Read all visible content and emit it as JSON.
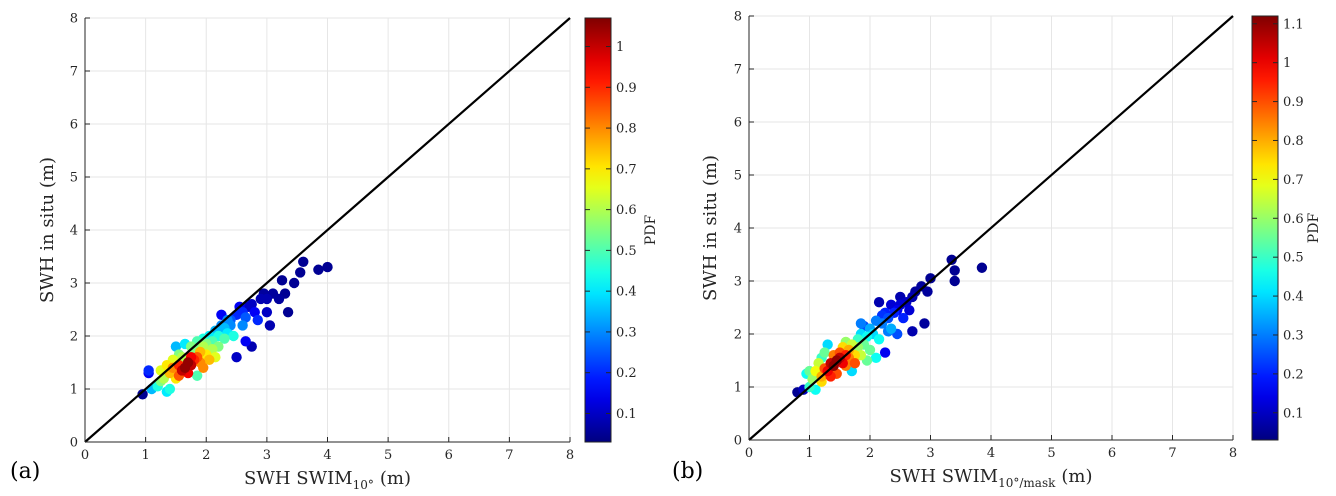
{
  "colors": {
    "reference_line": "#000000",
    "grid": "#e6e6e6",
    "axis": "#262626",
    "colormap": "jet"
  },
  "chart_data": [
    {
      "type": "scatter",
      "panel_label": "(a)",
      "xlabel_main": "SWH SWIM",
      "xlabel_sub": "10°",
      "xlabel_unit": "(m)",
      "ylabel": "SWH in situ (m)",
      "colorbar_label": "PDF",
      "xlim": [
        0,
        8
      ],
      "ylim": [
        0,
        8
      ],
      "xticks": [
        "0",
        "1",
        "2",
        "3",
        "4",
        "5",
        "6",
        "7",
        "8"
      ],
      "yticks": [
        "0",
        "1",
        "2",
        "3",
        "4",
        "5",
        "6",
        "7",
        "8"
      ],
      "colorbar_range": [
        0.03,
        1.07
      ],
      "colorbar_ticks": [
        "0.1",
        "0.2",
        "0.3",
        "0.4",
        "0.5",
        "0.6",
        "0.7",
        "0.8",
        "0.9",
        "1"
      ],
      "grid": true,
      "reference_line": "y = x",
      "points": [
        [
          0.95,
          0.9,
          0.05
        ],
        [
          1.05,
          1.3,
          0.15
        ],
        [
          1.05,
          1.35,
          0.2
        ],
        [
          1.1,
          1.0,
          0.35
        ],
        [
          1.2,
          1.05,
          0.45
        ],
        [
          1.25,
          1.15,
          0.55
        ],
        [
          1.3,
          1.2,
          0.6
        ],
        [
          1.35,
          0.95,
          0.4
        ],
        [
          1.4,
          1.0,
          0.45
        ],
        [
          1.4,
          1.3,
          0.75
        ],
        [
          1.45,
          1.4,
          0.8
        ],
        [
          1.5,
          1.2,
          0.7
        ],
        [
          1.5,
          1.8,
          0.35
        ],
        [
          1.55,
          1.45,
          0.9
        ],
        [
          1.55,
          1.25,
          0.85
        ],
        [
          1.6,
          1.35,
          1.0
        ],
        [
          1.6,
          1.6,
          0.6
        ],
        [
          1.65,
          1.4,
          1.05
        ],
        [
          1.65,
          1.85,
          0.4
        ],
        [
          1.7,
          1.5,
          1.05
        ],
        [
          1.7,
          1.3,
          0.95
        ],
        [
          1.75,
          1.45,
          1.0
        ],
        [
          1.75,
          1.6,
          0.95
        ],
        [
          1.8,
          1.55,
          0.9
        ],
        [
          1.8,
          1.75,
          0.55
        ],
        [
          1.85,
          1.6,
          0.85
        ],
        [
          1.85,
          1.25,
          0.5
        ],
        [
          1.9,
          1.7,
          0.75
        ],
        [
          1.9,
          1.5,
          0.8
        ],
        [
          1.95,
          1.8,
          0.6
        ],
        [
          1.95,
          1.95,
          0.45
        ],
        [
          2.0,
          1.65,
          0.7
        ],
        [
          2.0,
          1.85,
          0.55
        ],
        [
          2.05,
          2.0,
          0.4
        ],
        [
          2.1,
          1.75,
          0.6
        ],
        [
          2.1,
          1.9,
          0.5
        ],
        [
          2.15,
          2.1,
          0.35
        ],
        [
          2.2,
          1.8,
          0.55
        ],
        [
          2.2,
          2.0,
          0.45
        ],
        [
          2.25,
          2.2,
          0.3
        ],
        [
          2.25,
          2.4,
          0.15
        ],
        [
          2.3,
          1.95,
          0.5
        ],
        [
          2.3,
          2.15,
          0.35
        ],
        [
          2.35,
          2.05,
          0.4
        ],
        [
          2.4,
          2.3,
          0.25
        ],
        [
          2.4,
          2.2,
          0.3
        ],
        [
          2.45,
          2.0,
          0.45
        ],
        [
          2.5,
          1.6,
          0.1
        ],
        [
          2.5,
          2.4,
          0.2
        ],
        [
          2.55,
          2.55,
          0.15
        ],
        [
          2.6,
          2.2,
          0.3
        ],
        [
          2.6,
          2.45,
          0.2
        ],
        [
          2.65,
          1.9,
          0.15
        ],
        [
          2.65,
          2.35,
          0.25
        ],
        [
          2.7,
          2.55,
          0.1
        ],
        [
          2.75,
          1.8,
          0.08
        ],
        [
          2.75,
          2.6,
          0.1
        ],
        [
          2.8,
          2.45,
          0.15
        ],
        [
          2.85,
          2.3,
          0.2
        ],
        [
          2.9,
          2.7,
          0.08
        ],
        [
          2.95,
          2.8,
          0.06
        ],
        [
          3.0,
          2.7,
          0.08
        ],
        [
          3.0,
          2.45,
          0.1
        ],
        [
          3.05,
          2.2,
          0.08
        ],
        [
          3.1,
          2.8,
          0.06
        ],
        [
          3.2,
          2.7,
          0.06
        ],
        [
          3.25,
          3.05,
          0.05
        ],
        [
          3.3,
          2.8,
          0.05
        ],
        [
          3.35,
          2.45,
          0.05
        ],
        [
          3.45,
          3.0,
          0.05
        ],
        [
          3.55,
          3.2,
          0.05
        ],
        [
          3.6,
          3.4,
          0.05
        ],
        [
          3.85,
          3.25,
          0.05
        ],
        [
          4.0,
          3.3,
          0.05
        ],
        [
          1.55,
          1.65,
          0.55
        ],
        [
          1.45,
          1.55,
          0.65
        ],
        [
          1.35,
          1.45,
          0.7
        ],
        [
          1.25,
          1.35,
          0.65
        ],
        [
          2.05,
          1.55,
          0.75
        ],
        [
          1.95,
          1.4,
          0.8
        ],
        [
          2.15,
          1.6,
          0.65
        ],
        [
          1.85,
          1.9,
          0.5
        ],
        [
          1.75,
          1.8,
          0.55
        ],
        [
          2.35,
          2.3,
          0.3
        ]
      ]
    },
    {
      "type": "scatter",
      "panel_label": "(b)",
      "xlabel_main": "SWH SWIM",
      "xlabel_sub": "10°/mask",
      "xlabel_unit": "(m)",
      "ylabel": "SWH in situ (m)",
      "colorbar_label": "PDF",
      "xlim": [
        0,
        8
      ],
      "ylim": [
        0,
        8
      ],
      "xticks": [
        "0",
        "1",
        "2",
        "3",
        "4",
        "5",
        "6",
        "7",
        "8"
      ],
      "yticks": [
        "0",
        "1",
        "2",
        "3",
        "4",
        "5",
        "6",
        "7",
        "8"
      ],
      "colorbar_range": [
        0.03,
        1.12
      ],
      "colorbar_ticks": [
        "0.1",
        "0.2",
        "0.3",
        "0.4",
        "0.5",
        "0.6",
        "0.7",
        "0.8",
        "0.9",
        "1",
        "1.1"
      ],
      "grid": true,
      "reference_line": "y = x",
      "points": [
        [
          0.8,
          0.9,
          0.05
        ],
        [
          0.9,
          0.95,
          0.1
        ],
        [
          0.95,
          1.25,
          0.45
        ],
        [
          1.0,
          1.0,
          0.5
        ],
        [
          1.05,
          1.15,
          0.6
        ],
        [
          1.1,
          1.3,
          0.7
        ],
        [
          1.15,
          1.45,
          0.65
        ],
        [
          1.2,
          1.2,
          0.8
        ],
        [
          1.2,
          1.55,
          0.5
        ],
        [
          1.25,
          1.35,
          0.9
        ],
        [
          1.3,
          1.3,
          1.0
        ],
        [
          1.3,
          1.8,
          0.4
        ],
        [
          1.35,
          1.45,
          1.05
        ],
        [
          1.4,
          1.4,
          1.1
        ],
        [
          1.4,
          1.6,
          0.85
        ],
        [
          1.45,
          1.5,
          1.1
        ],
        [
          1.45,
          1.25,
          0.9
        ],
        [
          1.5,
          1.55,
          1.05
        ],
        [
          1.5,
          1.65,
          0.9
        ],
        [
          1.55,
          1.45,
          1.0
        ],
        [
          1.55,
          1.75,
          0.75
        ],
        [
          1.6,
          1.6,
          0.95
        ],
        [
          1.6,
          1.4,
          0.85
        ],
        [
          1.65,
          1.7,
          0.8
        ],
        [
          1.65,
          1.55,
          0.85
        ],
        [
          1.7,
          1.8,
          0.65
        ],
        [
          1.7,
          1.3,
          0.4
        ],
        [
          1.75,
          1.6,
          0.75
        ],
        [
          1.8,
          1.9,
          0.5
        ],
        [
          1.8,
          1.75,
          0.6
        ],
        [
          1.85,
          2.0,
          0.4
        ],
        [
          1.85,
          1.6,
          0.65
        ],
        [
          1.9,
          1.8,
          0.55
        ],
        [
          1.9,
          2.15,
          0.25
        ],
        [
          1.95,
          1.95,
          0.45
        ],
        [
          2.0,
          1.7,
          0.55
        ],
        [
          2.0,
          2.1,
          0.35
        ],
        [
          2.05,
          2.0,
          0.4
        ],
        [
          2.1,
          2.25,
          0.3
        ],
        [
          2.15,
          1.9,
          0.45
        ],
        [
          2.15,
          2.6,
          0.08
        ],
        [
          2.2,
          2.2,
          0.3
        ],
        [
          2.25,
          2.4,
          0.2
        ],
        [
          2.25,
          1.65,
          0.15
        ],
        [
          2.3,
          2.3,
          0.25
        ],
        [
          2.35,
          2.55,
          0.12
        ],
        [
          2.35,
          2.1,
          0.35
        ],
        [
          2.4,
          2.4,
          0.2
        ],
        [
          2.45,
          2.0,
          0.25
        ],
        [
          2.5,
          2.55,
          0.12
        ],
        [
          2.5,
          2.7,
          0.08
        ],
        [
          2.55,
          2.3,
          0.2
        ],
        [
          2.6,
          2.6,
          0.1
        ],
        [
          2.65,
          2.45,
          0.12
        ],
        [
          2.7,
          2.7,
          0.08
        ],
        [
          2.7,
          2.05,
          0.08
        ],
        [
          2.75,
          2.8,
          0.06
        ],
        [
          2.85,
          2.9,
          0.06
        ],
        [
          2.9,
          2.2,
          0.06
        ],
        [
          2.95,
          2.8,
          0.06
        ],
        [
          3.0,
          3.05,
          0.05
        ],
        [
          3.35,
          3.4,
          0.05
        ],
        [
          3.4,
          3.2,
          0.05
        ],
        [
          3.4,
          3.0,
          0.05
        ],
        [
          3.85,
          3.25,
          0.05
        ],
        [
          1.2,
          1.1,
          0.75
        ],
        [
          1.35,
          1.2,
          0.95
        ],
        [
          1.0,
          1.3,
          0.55
        ],
        [
          1.1,
          0.95,
          0.45
        ],
        [
          1.75,
          1.45,
          0.9
        ],
        [
          1.85,
          2.2,
          0.3
        ],
        [
          2.1,
          1.55,
          0.45
        ],
        [
          2.3,
          2.05,
          0.3
        ],
        [
          2.45,
          2.45,
          0.15
        ],
        [
          1.6,
          1.85,
          0.6
        ],
        [
          1.25,
          1.65,
          0.55
        ],
        [
          1.95,
          1.5,
          0.55
        ],
        [
          2.2,
          2.35,
          0.22
        ]
      ]
    }
  ]
}
